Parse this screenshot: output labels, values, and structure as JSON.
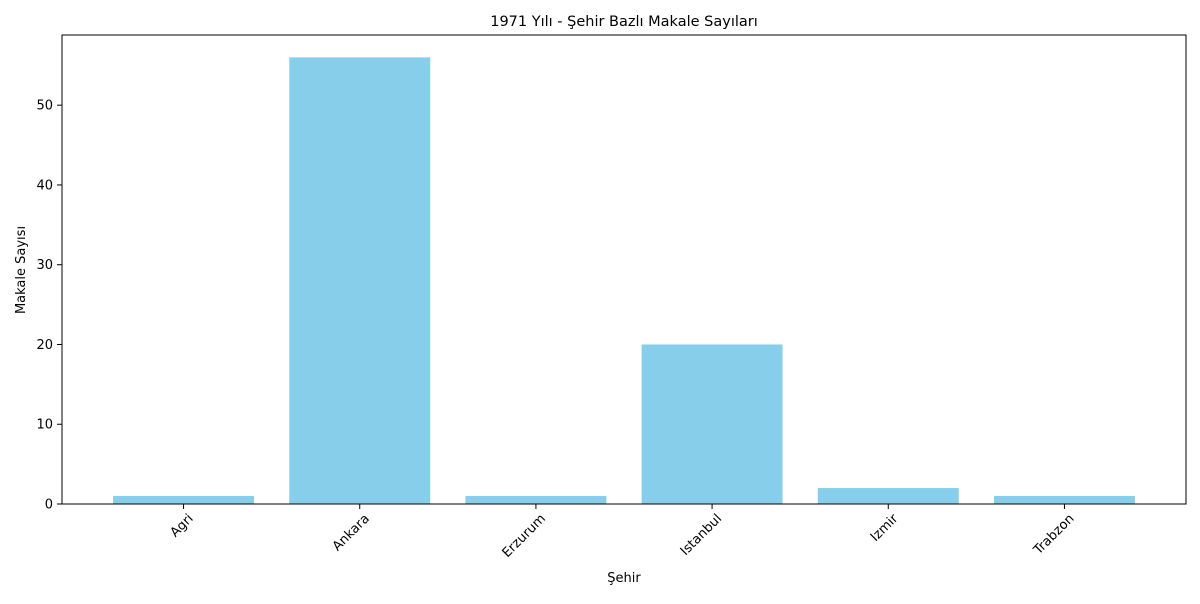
{
  "chart_data": {
    "type": "bar",
    "title": "1971 Yılı - Şehir Bazlı Makale Sayıları",
    "xlabel": "Şehir",
    "ylabel": "Makale Sayısı",
    "categories": [
      "Agri",
      "Ankara",
      "Erzurum",
      "Istanbul",
      "Izmir",
      "Trabzon"
    ],
    "values": [
      1,
      56,
      1,
      20,
      2,
      1
    ],
    "ylim": [
      0,
      58.8
    ],
    "yticks": [
      0,
      10,
      20,
      30,
      40,
      50
    ],
    "grid": false,
    "bar_color": "#87ceeb",
    "xtick_rotation_deg": 45
  }
}
